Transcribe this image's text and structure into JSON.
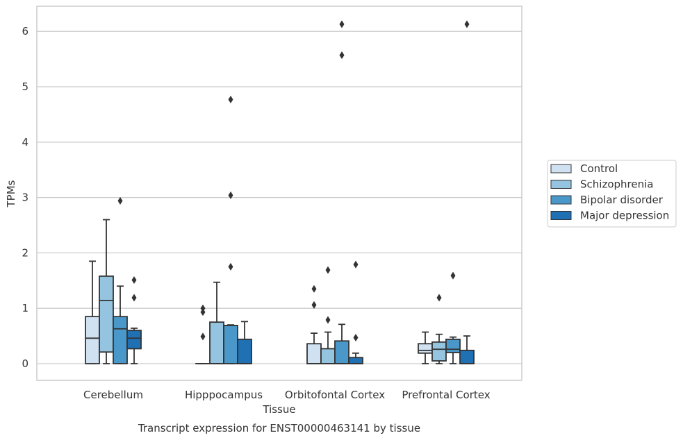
{
  "chart_data": {
    "type": "box",
    "caption": "Transcript expression for ENST00000463141 by tissue",
    "xlabel": "Tissue",
    "ylabel": "TPMs",
    "ylim": [
      -0.3,
      6.45
    ],
    "yticks": [
      0,
      1,
      2,
      3,
      4,
      5,
      6
    ],
    "grid": true,
    "legend_position": "right",
    "categories": [
      "Cerebellum",
      "Hipppocampus",
      "Orbitofontal Cortex",
      "Prefrontal Cortex"
    ],
    "series": [
      {
        "name": "Control",
        "color": "#d0e1f2",
        "boxes": [
          {
            "category": "Cerebellum",
            "whisker_low": 0,
            "q1": 0,
            "median": 0.46,
            "q3": 0.85,
            "whisker_high": 1.85,
            "outliers": []
          },
          {
            "category": "Hipppocampus",
            "whisker_low": 0,
            "q1": 0,
            "median": 0,
            "q3": 0,
            "whisker_high": 0,
            "outliers": [
              0.49,
              0.93,
              1.0
            ]
          },
          {
            "category": "Orbitofontal Cortex",
            "whisker_low": 0,
            "q1": 0,
            "median": 0,
            "q3": 0.36,
            "whisker_high": 0.55,
            "outliers": [
              1.06,
              1.35
            ]
          },
          {
            "category": "Prefrontal Cortex",
            "whisker_low": 0,
            "q1": 0.19,
            "median": 0.24,
            "q3": 0.36,
            "whisker_high": 0.57,
            "outliers": []
          }
        ]
      },
      {
        "name": "Schizophrenia",
        "color": "#94c4df",
        "boxes": [
          {
            "category": "Cerebellum",
            "whisker_low": 0,
            "q1": 0.21,
            "median": 1.14,
            "q3": 1.58,
            "whisker_high": 2.6,
            "outliers": []
          },
          {
            "category": "Hipppocampus",
            "whisker_low": 0,
            "q1": 0,
            "median": 0,
            "q3": 0.75,
            "whisker_high": 1.47,
            "outliers": []
          },
          {
            "category": "Orbitofontal Cortex",
            "whisker_low": 0,
            "q1": 0,
            "median": 0,
            "q3": 0.27,
            "whisker_high": 0.57,
            "outliers": [
              0.79,
              1.69
            ]
          },
          {
            "category": "Prefrontal Cortex",
            "whisker_low": 0,
            "q1": 0.05,
            "median": 0.26,
            "q3": 0.39,
            "whisker_high": 0.53,
            "outliers": [
              1.19
            ]
          }
        ]
      },
      {
        "name": "Bipolar disorder",
        "color": "#4a98c9",
        "boxes": [
          {
            "category": "Cerebellum",
            "whisker_low": 0,
            "q1": 0,
            "median": 0.63,
            "q3": 0.85,
            "whisker_high": 1.4,
            "outliers": [
              2.94
            ]
          },
          {
            "category": "Hipppocampus",
            "whisker_low": 0,
            "q1": 0,
            "median": 0.69,
            "q3": 0.69,
            "whisker_high": 0.7,
            "outliers": [
              1.75,
              3.04,
              4.77
            ]
          },
          {
            "category": "Orbitofontal Cortex",
            "whisker_low": 0,
            "q1": 0,
            "median": 0,
            "q3": 0.41,
            "whisker_high": 0.71,
            "outliers": [
              5.57,
              6.13
            ]
          },
          {
            "category": "Prefrontal Cortex",
            "whisker_low": 0,
            "q1": 0.2,
            "median": 0.26,
            "q3": 0.44,
            "whisker_high": 0.48,
            "outliers": [
              1.59
            ]
          }
        ]
      },
      {
        "name": "Major depression",
        "color": "#2070b4",
        "boxes": [
          {
            "category": "Cerebellum",
            "whisker_low": 0,
            "q1": 0.27,
            "median": 0.46,
            "q3": 0.6,
            "whisker_high": 0.64,
            "outliers": [
              1.19,
              1.51
            ]
          },
          {
            "category": "Hipppocampus",
            "whisker_low": 0,
            "q1": 0,
            "median": 0,
            "q3": 0.44,
            "whisker_high": 0.76,
            "outliers": []
          },
          {
            "category": "Orbitofontal Cortex",
            "whisker_low": 0,
            "q1": 0,
            "median": 0,
            "q3": 0.11,
            "whisker_high": 0.19,
            "outliers": [
              0.47,
              1.79
            ]
          },
          {
            "category": "Prefrontal Cortex",
            "whisker_low": 0,
            "q1": 0,
            "median": 0,
            "q3": 0.24,
            "whisker_high": 0.5,
            "outliers": [
              6.13
            ]
          }
        ]
      }
    ]
  }
}
